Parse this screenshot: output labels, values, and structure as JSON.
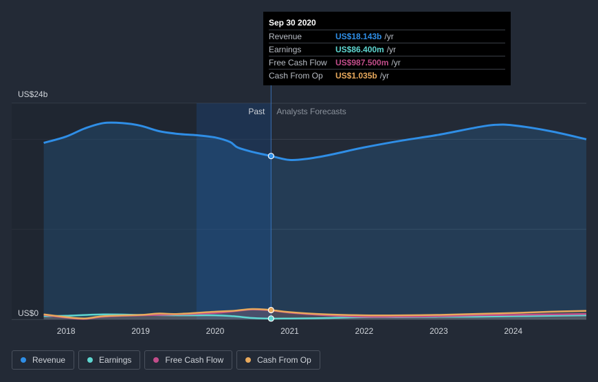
{
  "chart_data": {
    "type": "area",
    "y_top_label": "US$24b",
    "y_bottom_label": "US$0",
    "ylim": [
      0,
      24
    ],
    "region_labels": {
      "past": "Past",
      "forecast": "Analysts Forecasts"
    },
    "x_ticks": [
      "2018",
      "2019",
      "2020",
      "2021",
      "2022",
      "2023",
      "2024"
    ],
    "x_tick_values": [
      2018,
      2019,
      2020,
      2021,
      2022,
      2023,
      2024
    ],
    "xlim": [
      2017.27,
      2024.98
    ],
    "past_end": 2020.75,
    "highlight_start": 2019.75,
    "series": [
      {
        "name": "Revenue",
        "color": "#2f8ee6",
        "x": [
          2017.7,
          2018.0,
          2018.25,
          2018.5,
          2018.75,
          2019.0,
          2019.25,
          2019.5,
          2019.75,
          2020.0,
          2020.2,
          2020.3,
          2020.5,
          2020.75,
          2021.0,
          2021.25,
          2021.5,
          2021.75,
          2022.0,
          2022.5,
          2023.0,
          2023.5,
          2023.75,
          2024.0,
          2024.5,
          2024.98
        ],
        "values": [
          19.6,
          20.3,
          21.2,
          21.8,
          21.8,
          21.5,
          20.9,
          20.6,
          20.45,
          20.2,
          19.7,
          19.1,
          18.6,
          18.14,
          17.7,
          17.85,
          18.2,
          18.65,
          19.1,
          19.85,
          20.5,
          21.3,
          21.6,
          21.55,
          20.9,
          20.0
        ]
      },
      {
        "name": "Earnings",
        "color": "#5ed6d0",
        "x": [
          2017.7,
          2018.0,
          2018.5,
          2019.0,
          2019.5,
          2020.0,
          2020.25,
          2020.5,
          2020.75,
          2021.0,
          2021.5,
          2022.0,
          2022.5,
          2023.0,
          2023.5,
          2024.0,
          2024.5,
          2024.98
        ],
        "values": [
          0.35,
          0.4,
          0.55,
          0.5,
          0.45,
          0.45,
          0.35,
          0.15,
          0.09,
          0.1,
          0.15,
          0.25,
          0.25,
          0.28,
          0.3,
          0.35,
          0.4,
          0.45
        ]
      },
      {
        "name": "Free Cash Flow",
        "color": "#c24d8a",
        "x": [
          2017.7,
          2018.0,
          2018.25,
          2018.5,
          2019.0,
          2019.5,
          2020.0,
          2020.25,
          2020.5,
          2020.75,
          2021.0,
          2021.5,
          2022.0,
          2022.5,
          2023.0,
          2023.5,
          2024.0,
          2024.5,
          2024.98
        ],
        "values": [
          0.5,
          0.2,
          0.05,
          0.3,
          0.45,
          0.55,
          0.7,
          0.9,
          1.1,
          0.99,
          0.75,
          0.45,
          0.3,
          0.3,
          0.35,
          0.45,
          0.5,
          0.55,
          0.6
        ]
      },
      {
        "name": "Cash From Op",
        "color": "#e8a95c",
        "x": [
          2017.7,
          2018.0,
          2018.25,
          2018.5,
          2019.0,
          2019.25,
          2019.5,
          2020.0,
          2020.25,
          2020.5,
          2020.75,
          2021.0,
          2021.5,
          2022.0,
          2022.5,
          2023.0,
          2023.5,
          2024.0,
          2024.5,
          2024.98
        ],
        "values": [
          0.55,
          0.25,
          0.1,
          0.35,
          0.5,
          0.65,
          0.6,
          0.85,
          0.95,
          1.15,
          1.035,
          0.8,
          0.55,
          0.45,
          0.45,
          0.5,
          0.6,
          0.7,
          0.85,
          0.95
        ]
      }
    ]
  },
  "tooltip": {
    "date": "Sep 30 2020",
    "rows": [
      {
        "label": "Revenue",
        "value": "US$18.143b",
        "unit": "/yr",
        "color": "#2f8ee6"
      },
      {
        "label": "Earnings",
        "value": "US$86.400m",
        "unit": "/yr",
        "color": "#5ed6d0"
      },
      {
        "label": "Free Cash Flow",
        "value": "US$987.500m",
        "unit": "/yr",
        "color": "#c24d8a"
      },
      {
        "label": "Cash From Op",
        "value": "US$1.035b",
        "unit": "/yr",
        "color": "#e8a95c"
      }
    ]
  },
  "legend": [
    {
      "label": "Revenue",
      "color": "#2f8ee6"
    },
    {
      "label": "Earnings",
      "color": "#5ed6d0"
    },
    {
      "label": "Free Cash Flow",
      "color": "#c24d8a"
    },
    {
      "label": "Cash From Op",
      "color": "#e8a95c"
    }
  ]
}
